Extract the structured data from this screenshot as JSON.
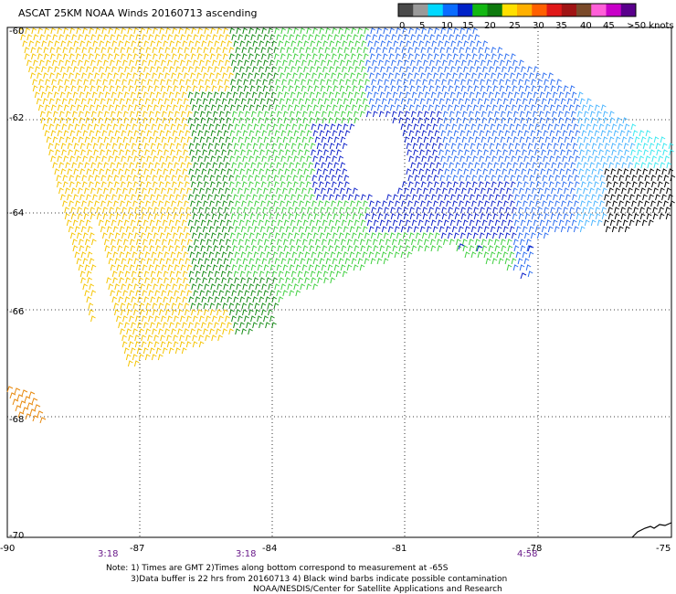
{
  "title": "ASCAT 25KM NOAA Winds 20160713 ascending",
  "legend": {
    "labels": [
      "0",
      "5",
      "10",
      "15",
      "20",
      "25",
      "30",
      "35",
      "40",
      "45",
      ">50 knots"
    ],
    "colors": [
      "#4a4a4a",
      "#9a9a9a",
      "#00d8ff",
      "#0a6cff",
      "#0022c8",
      "#12b812",
      "#0e7a0e",
      "#ffe000",
      "#ffb000",
      "#ff6000",
      "#e01818",
      "#a01414",
      "#7a4a2a",
      "#ff5fd8",
      "#c800c8",
      "#5a008c"
    ]
  },
  "axes": {
    "x_ticks": [
      "-90",
      "-87",
      "-84",
      "-81",
      "-78",
      "-75"
    ],
    "y_ticks": [
      "-60",
      "-62",
      "-64",
      "-66",
      "-68",
      "-70"
    ]
  },
  "times": [
    "3:18",
    "3:18",
    "4:58"
  ],
  "notes": [
    "Note: 1) Times are GMT 2)Times along bottom correspond to measurement at -65S",
    "3)Data buffer is 22 hrs from 20160713 4) Black wind barbs indicate possible contamination",
    "NOAA/NESDIS/Center for Satellite Applications and Research"
  ],
  "colors": {
    "yellow": "#f5c400",
    "orange": "#e88a10",
    "green_light": "#3ecf3e",
    "green_dark": "#138a13",
    "blue_dark": "#0a1ec8",
    "blue_mid": "#2a6cf0",
    "blue_light": "#48b4ff",
    "cyan": "#38e8f0",
    "black": "#000000"
  }
}
